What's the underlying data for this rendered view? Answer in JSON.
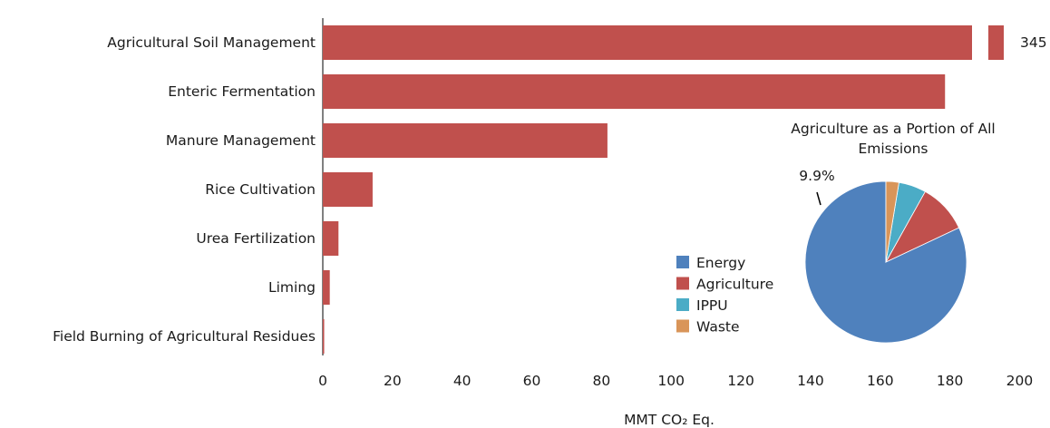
{
  "chart_data": [
    {
      "type": "bar",
      "orientation": "horizontal",
      "categories": [
        "Agricultural Soil Management",
        "Enteric Fermentation",
        "Manure Management",
        "Rice Cultivation",
        "Urea Fertilization",
        "Liming",
        "Field Burning of Agricultural Residues"
      ],
      "values": [
        345,
        178.6,
        81.7,
        14.3,
        4.5,
        2.0,
        0.4
      ],
      "xlabel": "MMT CO₂ Eq.",
      "ylabel": "",
      "xlim": [
        0,
        200
      ],
      "xticks": [
        "0",
        "20",
        "40",
        "60",
        "80",
        "100",
        "120",
        "140",
        "160",
        "180",
        "200"
      ],
      "axis_break": true,
      "annotations": [
        {
          "category": "Agricultural Soil Management",
          "text": "345"
        }
      ],
      "colors": {
        "bar": "#c0504d"
      },
      "grid": false
    },
    {
      "type": "pie",
      "title": "Agriculture as a Portion of All Emissions",
      "title_lines": [
        "Agriculture as a Portion of All",
        "Emissions"
      ],
      "slices": [
        {
          "label": "Energy",
          "value": 82.0,
          "color": "#4f81bd"
        },
        {
          "label": "Agriculture",
          "value": 9.9,
          "color": "#c0504d"
        },
        {
          "label": "IPPU",
          "value": 5.5,
          "color": "#4bacc6"
        },
        {
          "label": "Waste",
          "value": 2.6,
          "color": "#d99559"
        }
      ],
      "annotations": [
        {
          "slice": "Agriculture",
          "text": "9.9%"
        }
      ],
      "legend": "left"
    }
  ]
}
